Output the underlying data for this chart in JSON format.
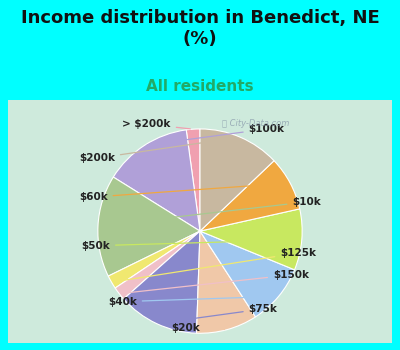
{
  "title": "Income distribution in Benedict, NE\n(%)",
  "subtitle": "All residents",
  "title_color": "#111111",
  "subtitle_color": "#22aa66",
  "bg_cyan": "#00ffff",
  "bg_chart_left": "#c8e8d0",
  "bg_chart_right": "#ddeeff",
  "labels": [
    "> $200k",
    "$100k",
    "$10k",
    "$125k",
    "$150k",
    "$75k",
    "$20k",
    "$40k",
    "$50k",
    "$60k",
    "$200k"
  ],
  "values": [
    2,
    13,
    15,
    2,
    2,
    12,
    9,
    9,
    9,
    8,
    12
  ],
  "colors": [
    "#f0a0b0",
    "#b0a0d8",
    "#a8c890",
    "#f0e870",
    "#f0c0c8",
    "#8888cc",
    "#f0c8a8",
    "#a0c8f0",
    "#c8e860",
    "#f0a840",
    "#c8b8a0"
  ],
  "startangle": 90,
  "label_fontsize": 7.5,
  "title_fontsize": 13,
  "subtitle_fontsize": 11,
  "watermark": "City-Data.com"
}
